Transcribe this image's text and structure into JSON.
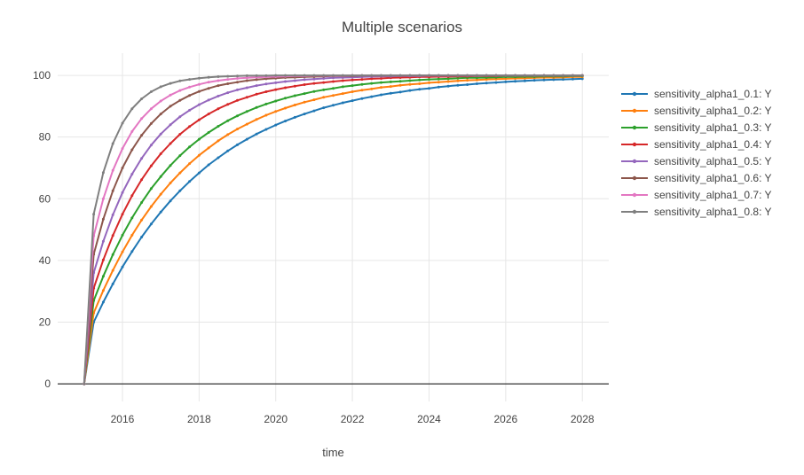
{
  "chart_data": {
    "type": "line",
    "mode": "lines+markers",
    "title": "Multiple scenarios",
    "xlabel": "time",
    "ylabel": "",
    "grid": true,
    "legend_position": "right",
    "background": "#ffffff",
    "grid_color": "#e6e6e6",
    "zeroline_color": "#444444",
    "text_color": "#444444",
    "xlim": [
      2014.31,
      2028.69
    ],
    "ylim": [
      -5.7,
      107.2
    ],
    "xticks": [
      2016,
      2018,
      2020,
      2022,
      2024,
      2026,
      2028
    ],
    "yticks": [
      0,
      20,
      40,
      60,
      80,
      100
    ],
    "x": [
      2015,
      2015.25,
      2015.5,
      2015.75,
      2016,
      2016.25,
      2016.5,
      2016.75,
      2017,
      2017.25,
      2017.5,
      2017.75,
      2018,
      2018.25,
      2018.5,
      2018.75,
      2019,
      2019.25,
      2019.5,
      2019.75,
      2020,
      2020.25,
      2020.5,
      2020.75,
      2021,
      2021.25,
      2021.5,
      2021.75,
      2022,
      2022.25,
      2022.5,
      2022.75,
      2023,
      2023.25,
      2023.5,
      2023.75,
      2024,
      2024.25,
      2024.5,
      2024.75,
      2025,
      2025.25,
      2025.5,
      2025.75,
      2026,
      2026.25,
      2026.5,
      2026.75,
      2027,
      2027.25,
      2027.5,
      2027.75,
      2028
    ],
    "series": [
      {
        "name": "sensitivity_alpha1_0.1: Y",
        "color": "#1f77b4",
        "y": [
          0,
          20.0,
          26.5,
          32.4,
          37.9,
          42.9,
          47.6,
          51.8,
          55.7,
          59.3,
          62.6,
          65.6,
          68.4,
          71.0,
          73.3,
          75.5,
          77.5,
          79.3,
          81.0,
          82.5,
          83.9,
          85.2,
          86.4,
          87.5,
          88.5,
          89.5,
          90.3,
          91.1,
          91.8,
          92.5,
          93.1,
          93.7,
          94.2,
          94.6,
          95.1,
          95.5,
          95.8,
          96.2,
          96.5,
          96.8,
          97.0,
          97.3,
          97.5,
          97.7,
          97.9,
          98.1,
          98.2,
          98.4,
          98.5,
          98.6,
          98.7,
          98.8,
          98.9
        ]
      },
      {
        "name": "sensitivity_alpha1_0.2: Y",
        "color": "#ff7f0e",
        "y": [
          0,
          23.0,
          30.3,
          36.8,
          42.8,
          48.2,
          53.1,
          57.5,
          61.5,
          65.1,
          68.4,
          71.4,
          74.1,
          76.5,
          78.8,
          80.8,
          82.6,
          84.2,
          85.7,
          87.1,
          88.3,
          89.4,
          90.4,
          91.3,
          92.1,
          92.9,
          93.5,
          94.1,
          94.7,
          95.2,
          95.6,
          96.1,
          96.4,
          96.8,
          97.1,
          97.3,
          97.6,
          97.8,
          98.0,
          98.2,
          98.4,
          98.5,
          98.7,
          98.8,
          98.9,
          99.0,
          99.1,
          99.2,
          99.3,
          99.3,
          99.4,
          99.5,
          99.5
        ]
      },
      {
        "name": "sensitivity_alpha1_0.3: Y",
        "color": "#2ca02c",
        "y": [
          0,
          27.0,
          34.9,
          41.9,
          48.2,
          53.8,
          58.8,
          63.3,
          67.2,
          70.8,
          74.0,
          76.8,
          79.3,
          81.5,
          83.5,
          85.3,
          86.9,
          88.3,
          89.6,
          90.7,
          91.7,
          92.6,
          93.4,
          94.1,
          94.8,
          95.3,
          95.8,
          96.3,
          96.7,
          97.1,
          97.4,
          97.7,
          97.9,
          98.1,
          98.3,
          98.5,
          98.7,
          98.8,
          98.9,
          99.1,
          99.2,
          99.2,
          99.3,
          99.4,
          99.5,
          99.5,
          99.6,
          99.6,
          99.7,
          99.7,
          99.7,
          99.8,
          99.8
        ]
      },
      {
        "name": "sensitivity_alpha1_0.4: Y",
        "color": "#d62728",
        "y": [
          0,
          31.0,
          40.2,
          48.1,
          55.0,
          61.0,
          66.2,
          70.7,
          74.6,
          77.9,
          80.9,
          83.4,
          85.6,
          87.5,
          89.2,
          90.6,
          91.9,
          92.9,
          93.9,
          94.7,
          95.4,
          96.0,
          96.5,
          97.0,
          97.4,
          97.7,
          98.0,
          98.3,
          98.5,
          98.7,
          98.9,
          99.0,
          99.2,
          99.3,
          99.4,
          99.5,
          99.5,
          99.6,
          99.6,
          99.7,
          99.7,
          99.8,
          99.8,
          99.8,
          99.9,
          99.9,
          99.9,
          99.9,
          99.9,
          99.9,
          99.9,
          100.0,
          100.0
        ]
      },
      {
        "name": "sensitivity_alpha1_0.5: Y",
        "color": "#9467bd",
        "y": [
          0,
          36.0,
          46.2,
          54.8,
          62.0,
          68.0,
          73.1,
          77.4,
          81.0,
          84.0,
          86.6,
          88.7,
          90.5,
          92.0,
          93.3,
          94.4,
          95.3,
          96.0,
          96.7,
          97.2,
          97.6,
          98.0,
          98.3,
          98.6,
          98.8,
          99.0,
          99.2,
          99.3,
          99.4,
          99.5,
          99.6,
          99.7,
          99.7,
          99.8,
          99.8,
          99.8,
          99.9,
          99.9,
          99.9,
          99.9,
          99.9,
          99.9,
          100.0,
          100.0,
          100.0,
          100.0,
          100.0,
          100.0,
          100.0,
          100.0,
          100.0,
          100.0,
          100.0
        ]
      },
      {
        "name": "sensitivity_alpha1_0.6: Y",
        "color": "#8c564b",
        "y": [
          0,
          42.0,
          53.4,
          62.6,
          70.0,
          75.9,
          80.6,
          84.4,
          87.5,
          90.0,
          91.9,
          93.5,
          94.8,
          95.8,
          96.7,
          97.3,
          97.8,
          98.3,
          98.6,
          98.9,
          99.1,
          99.3,
          99.4,
          99.5,
          99.6,
          99.7,
          99.8,
          99.8,
          99.8,
          99.9,
          99.9,
          99.9,
          99.9,
          99.9,
          100.0,
          100.0,
          100.0,
          100.0,
          100.0,
          100.0,
          100.0,
          100.0,
          100.0,
          100.0,
          100.0,
          100.0,
          100.0,
          100.0,
          100.0,
          100.0,
          100.0,
          100.0,
          100.0
        ]
      },
      {
        "name": "sensitivity_alpha1_0.7: Y",
        "color": "#e377c2",
        "y": [
          0,
          48.0,
          60.0,
          69.2,
          76.3,
          81.8,
          86.0,
          89.2,
          91.7,
          93.6,
          95.1,
          96.2,
          97.1,
          97.8,
          98.3,
          98.7,
          99.0,
          99.2,
          99.4,
          99.5,
          99.6,
          99.7,
          99.8,
          99.8,
          99.9,
          99.9,
          99.9,
          99.9,
          100.0,
          100.0,
          100.0,
          100.0,
          100.0,
          100.0,
          100.0,
          100.0,
          100.0,
          100.0,
          100.0,
          100.0,
          100.0,
          100.0,
          100.0,
          100.0,
          100.0,
          100.0,
          100.0,
          100.0,
          100.0,
          100.0,
          100.0,
          100.0,
          100.0
        ]
      },
      {
        "name": "sensitivity_alpha1_0.8: Y",
        "color": "#7f7f7f",
        "y": [
          0,
          55.0,
          68.5,
          77.9,
          84.5,
          89.2,
          92.4,
          94.7,
          96.3,
          97.4,
          98.2,
          98.7,
          99.1,
          99.4,
          99.6,
          99.7,
          99.8,
          99.9,
          99.9,
          99.9,
          100.0,
          100.0,
          100.0,
          100.0,
          100.0,
          100.0,
          100.0,
          100.0,
          100.0,
          100.0,
          100.0,
          100.0,
          100.0,
          100.0,
          100.0,
          100.0,
          100.0,
          100.0,
          100.0,
          100.0,
          100.0,
          100.0,
          100.0,
          100.0,
          100.0,
          100.0,
          100.0,
          100.0,
          100.0,
          100.0,
          100.0,
          100.0,
          100.0
        ]
      }
    ]
  }
}
